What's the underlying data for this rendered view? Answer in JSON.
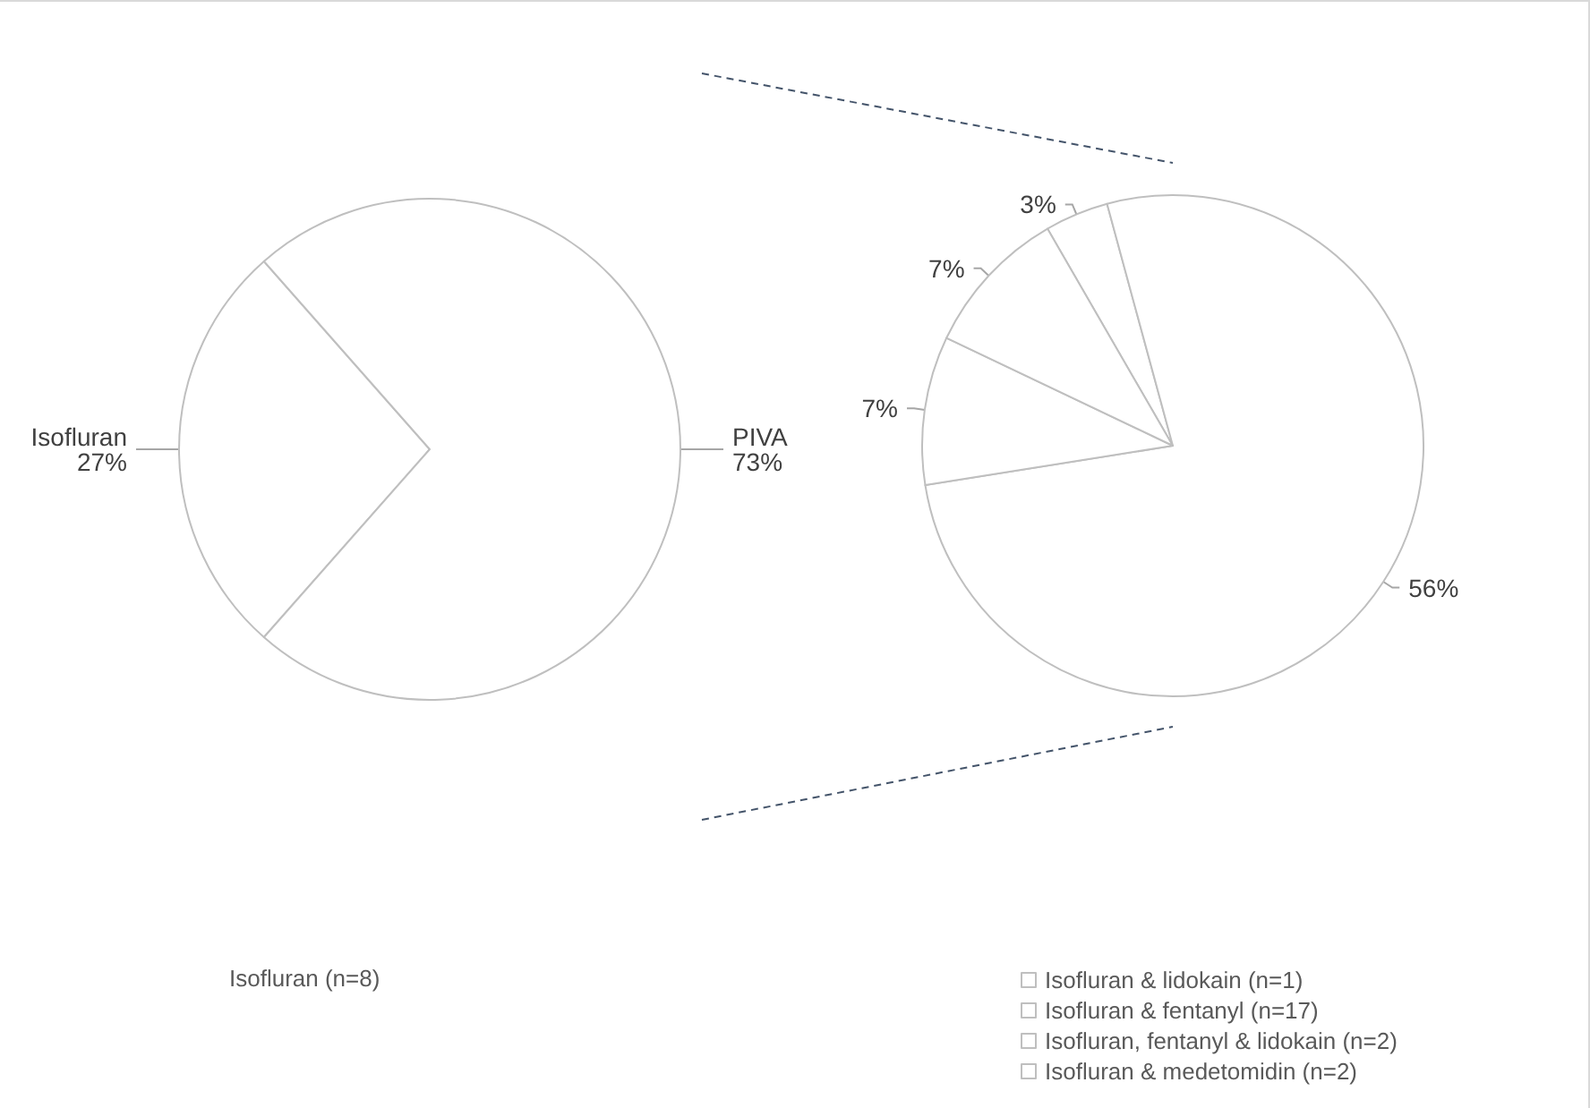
{
  "chart_data": [
    {
      "type": "pie",
      "categories": [
        "Isofluran",
        "PIVA"
      ],
      "values": [
        27,
        73
      ],
      "value_labels": [
        "27%",
        "73%"
      ],
      "colors": [
        "#ffffff",
        "#ffffff"
      ],
      "legend": false,
      "annotations": [
        "Isofluran (n=8)"
      ]
    },
    {
      "type": "pie",
      "categories": [
        "Isofluran & lidokain (n=1)",
        "Isofluran & fentanyl (n=17)",
        "Isofluran, fentanyl & lidokain (n=2)",
        "Isofluran & medetomidin (n=2)"
      ],
      "values": [
        3,
        56,
        7,
        7
      ],
      "value_labels": [
        "3%",
        "56%",
        "7%",
        "7%"
      ],
      "colors": [
        "#ffffff",
        "#ffffff",
        "#ffffff",
        "#ffffff"
      ],
      "legend": "bottom"
    }
  ]
}
